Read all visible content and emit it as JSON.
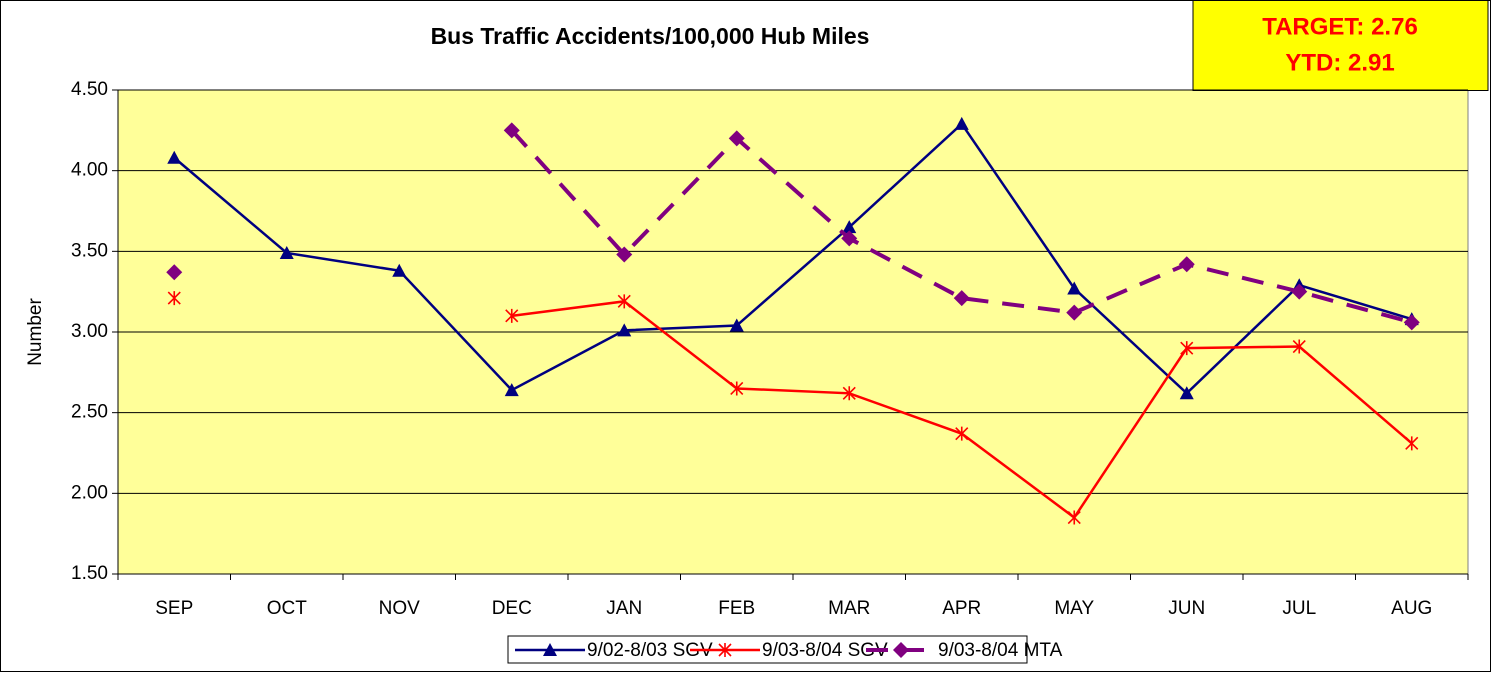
{
  "chart_data": {
    "type": "line",
    "title": "Bus Traffic Accidents/100,000 Hub Miles",
    "annotations": [
      "TARGET: 2.76",
      "YTD: 2.91"
    ],
    "ylabel": "Number",
    "categories": [
      "SEP",
      "OCT",
      "NOV",
      "DEC",
      "JAN",
      "FEB",
      "MAR",
      "APR",
      "MAY",
      "JUN",
      "JUL",
      "AUG"
    ],
    "series": [
      {
        "name": "9/02-8/03 SGV",
        "color": "#000080",
        "marker": "triangle",
        "dash": "solid",
        "values": [
          4.08,
          3.49,
          3.38,
          2.64,
          3.01,
          3.04,
          3.65,
          4.29,
          3.27,
          2.62,
          3.29,
          3.08
        ]
      },
      {
        "name": "9/03-8/04 SGV",
        "color": "#ff0000",
        "marker": "asterisk",
        "dash": "solid",
        "values": [
          3.21,
          null,
          null,
          3.1,
          3.19,
          2.65,
          2.62,
          2.37,
          1.85,
          2.9,
          2.91,
          2.31
        ]
      },
      {
        "name": "9/03-8/04 MTA",
        "color": "#800080",
        "marker": "diamond",
        "dash": "dashed",
        "values": [
          3.37,
          null,
          null,
          4.25,
          3.48,
          4.2,
          3.58,
          3.21,
          3.12,
          3.42,
          3.25,
          3.06
        ]
      }
    ],
    "ylim": [
      1.5,
      4.5
    ],
    "yticks": [
      {
        "value": 1.5,
        "label": "1.50"
      },
      {
        "value": 2,
        "label": "2.00"
      },
      {
        "value": 2.5,
        "label": "2.50"
      },
      {
        "value": 3,
        "label": "3.00"
      },
      {
        "value": 3.5,
        "label": "3.50"
      },
      {
        "value": 4,
        "label": "4.00"
      },
      {
        "value": 4.5,
        "label": "4.50"
      }
    ],
    "grid": true,
    "legend": "bottom"
  }
}
